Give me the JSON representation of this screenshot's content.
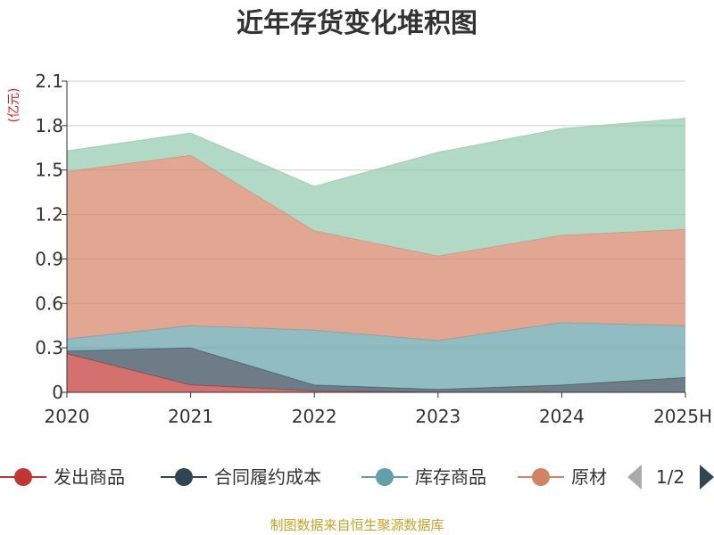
{
  "chart_data": {
    "type": "area",
    "stacked": true,
    "title": "近年存货变化堆积图",
    "unit": "(亿元)",
    "categories": [
      "2020",
      "2021",
      "2022",
      "2023",
      "2024",
      "2025H"
    ],
    "ylim": [
      0,
      2.1
    ],
    "yticks": [
      "0",
      "0.3",
      "0.6",
      "0.9",
      "1.2",
      "1.5",
      "1.8",
      "2.1"
    ],
    "grid": true,
    "legend_position": "bottom",
    "series": [
      {
        "name": "发出商品",
        "color": "#c23531",
        "values": [
          0.26,
          0.05,
          0.01,
          0.0,
          0.0,
          0.0
        ]
      },
      {
        "name": "合同履约成本",
        "color": "#2f4554",
        "values": [
          0.02,
          0.25,
          0.04,
          0.02,
          0.05,
          0.1
        ]
      },
      {
        "name": "库存商品",
        "color": "#61a0a8",
        "values": [
          0.08,
          0.15,
          0.37,
          0.33,
          0.42,
          0.35
        ]
      },
      {
        "name": "原材料",
        "color": "#d48265",
        "values": [
          1.13,
          1.15,
          0.67,
          0.57,
          0.59,
          0.65
        ]
      },
      {
        "name": "",
        "color": "#91c7ae",
        "values": [
          0.14,
          0.15,
          0.3,
          0.7,
          0.72,
          0.75
        ]
      }
    ]
  },
  "legend": {
    "items": [
      {
        "label": "发出商品",
        "color": "#c23531"
      },
      {
        "label": "合同履约成本",
        "color": "#2f4554"
      },
      {
        "label": "库存商品",
        "color": "#61a0a8"
      },
      {
        "label": "原材",
        "color": "#d48265"
      }
    ],
    "page_indicator": "1/2"
  },
  "footer": {
    "source": "制图数据来自恒生聚源数据库"
  }
}
